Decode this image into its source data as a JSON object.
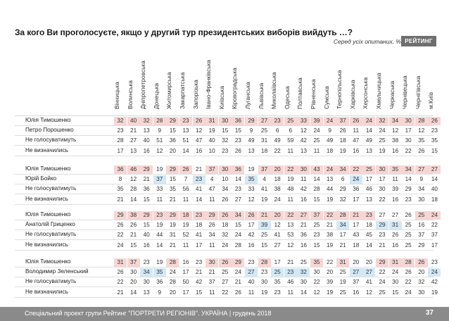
{
  "header": {
    "title": "За кого Ви проголосуєте, якщо у другий тур президентських виборів вийдуть …?",
    "subtitle": "Серед усіх опитаних, %",
    "logo": "РЕЙТИНГ"
  },
  "regions": [
    "Вінницька",
    "Волинська",
    "Дніпропетровська",
    "Донецька",
    "Житомирська",
    "Закарпатська",
    "Запорізька",
    "Івано-Франківська",
    "Київська",
    "Кіровоградська",
    "Луганська",
    "Львівська",
    "Миколаївська",
    "Одеська",
    "Полтавська",
    "Рівненська",
    "Сумська",
    "Тернопільська",
    "Харківська",
    "Херсонська",
    "Хмельницька",
    "Черкаська",
    "Чернівецька",
    "Чернігівська",
    "м.Київ"
  ],
  "colors": {
    "leader": "#f6d6d4",
    "challenger": "#d3e8f6"
  },
  "blocks": [
    {
      "rows": [
        {
          "label": "Юлія Тимошенко",
          "values": [
            "32",
            "40",
            "32",
            "28",
            "29",
            "23",
            "26",
            "31",
            "30",
            "36",
            "29",
            "27",
            "23",
            "25",
            "33",
            "39",
            "24",
            "37",
            "26",
            "24",
            "32",
            "34",
            "30",
            "28",
            "26"
          ],
          "highlight": [
            "r",
            "r",
            "r",
            "r",
            "r",
            "r",
            "r",
            "r",
            "r",
            "r",
            "r",
            "r",
            "r",
            "r",
            "r",
            "r",
            "r",
            "r",
            "r",
            "r",
            "r",
            "r",
            "r",
            "r",
            "r"
          ]
        },
        {
          "label": "Петро Порошенко",
          "values": [
            "23",
            "21",
            "13",
            "9",
            "15",
            "13",
            "12",
            "19",
            "15",
            "15",
            "9",
            "25",
            "6",
            "6",
            "12",
            "24",
            "9",
            "26",
            "11",
            "14",
            "24",
            "12",
            "17",
            "12",
            "23"
          ],
          "highlight": []
        },
        {
          "label": "Не голосуватимуть",
          "values": [
            "28",
            "27",
            "40",
            "51",
            "36",
            "51",
            "47",
            "40",
            "32",
            "23",
            "49",
            "31",
            "49",
            "59",
            "42",
            "25",
            "49",
            "18",
            "47",
            "49",
            "25",
            "38",
            "30",
            "35",
            "35"
          ],
          "highlight": []
        },
        {
          "label": "Не визначились",
          "values": [
            "17",
            "13",
            "16",
            "12",
            "20",
            "14",
            "16",
            "10",
            "23",
            "26",
            "13",
            "18",
            "22",
            "11",
            "13",
            "11",
            "18",
            "19",
            "16",
            "13",
            "19",
            "16",
            "22",
            "26",
            "15"
          ],
          "highlight": []
        }
      ]
    },
    {
      "rows": [
        {
          "label": "Юлія Тимошенко",
          "values": [
            "36",
            "46",
            "29",
            "19",
            "29",
            "26",
            "21",
            "37",
            "30",
            "36",
            "19",
            "37",
            "20",
            "22",
            "30",
            "43",
            "24",
            "34",
            "22",
            "25",
            "30",
            "35",
            "34",
            "27",
            "27"
          ],
          "highlight": [
            "r",
            "r",
            "r",
            "",
            "r",
            "r",
            "",
            "r",
            "r",
            "r",
            "",
            "r",
            "r",
            "r",
            "r",
            "r",
            "r",
            "r",
            "r",
            "r",
            "r",
            "r",
            "r",
            "r",
            "r"
          ]
        },
        {
          "label": "Юрій Бойко",
          "values": [
            "8",
            "12",
            "21",
            "37",
            "15",
            "7",
            "23",
            "4",
            "10",
            "14",
            "35",
            "4",
            "18",
            "19",
            "11",
            "14",
            "13",
            "6",
            "24",
            "17",
            "17",
            "11",
            "14",
            "9",
            "14"
          ],
          "highlight": [
            "",
            "",
            "",
            "b",
            "",
            "",
            "b",
            "",
            "",
            "",
            "b",
            "",
            "",
            "",
            "",
            "",
            "",
            "",
            "b",
            "",
            "",
            "",
            "",
            "",
            ""
          ]
        },
        {
          "label": "Не голосуватимуть",
          "values": [
            "35",
            "28",
            "36",
            "33",
            "35",
            "56",
            "41",
            "47",
            "34",
            "23",
            "33",
            "41",
            "38",
            "48",
            "42",
            "28",
            "44",
            "29",
            "36",
            "46",
            "30",
            "39",
            "29",
            "34",
            "40"
          ],
          "highlight": []
        },
        {
          "label": "Не визначились",
          "values": [
            "21",
            "14",
            "15",
            "11",
            "21",
            "11",
            "14",
            "11",
            "26",
            "27",
            "12",
            "19",
            "24",
            "11",
            "16",
            "15",
            "19",
            "32",
            "17",
            "13",
            "22",
            "16",
            "23",
            "30",
            "18"
          ],
          "highlight": []
        }
      ]
    },
    {
      "rows": [
        {
          "label": "Юлія Тимошенко",
          "values": [
            "29",
            "38",
            "29",
            "23",
            "29",
            "18",
            "23",
            "29",
            "26",
            "34",
            "26",
            "21",
            "20",
            "22",
            "27",
            "37",
            "22",
            "28",
            "21",
            "23",
            "27",
            "27",
            "26",
            "25",
            "24"
          ],
          "highlight": [
            "r",
            "r",
            "r",
            "r",
            "r",
            "r",
            "r",
            "r",
            "r",
            "r",
            "r",
            "r",
            "r",
            "r",
            "r",
            "r",
            "r",
            "r",
            "r",
            "r",
            "",
            "",
            "",
            "r",
            "r"
          ]
        },
        {
          "label": "Анатолій Гриценко",
          "values": [
            "26",
            "26",
            "15",
            "19",
            "19",
            "19",
            "18",
            "26",
            "18",
            "15",
            "17",
            "39",
            "12",
            "13",
            "21",
            "25",
            "21",
            "34",
            "17",
            "18",
            "29",
            "31",
            "25",
            "16",
            "22"
          ],
          "highlight": [
            "",
            "",
            "",
            "",
            "",
            "",
            "",
            "",
            "",
            "",
            "",
            "b",
            "",
            "",
            "",
            "",
            "",
            "b",
            "",
            "",
            "b",
            "b",
            "",
            "",
            ""
          ]
        },
        {
          "label": "Не голосуватимуть",
          "values": [
            "22",
            "21",
            "40",
            "44",
            "31",
            "52",
            "41",
            "34",
            "32",
            "24",
            "42",
            "25",
            "41",
            "53",
            "36",
            "23",
            "38",
            "17",
            "43",
            "45",
            "23",
            "26",
            "25",
            "37",
            "37"
          ],
          "highlight": []
        },
        {
          "label": "Не визначились",
          "values": [
            "24",
            "15",
            "16",
            "14",
            "21",
            "11",
            "17",
            "11",
            "24",
            "28",
            "16",
            "15",
            "27",
            "12",
            "16",
            "15",
            "19",
            "21",
            "18",
            "14",
            "21",
            "16",
            "25",
            "29",
            "17"
          ],
          "highlight": []
        }
      ]
    },
    {
      "rows": [
        {
          "label": "Юлія Тимошенко",
          "values": [
            "31",
            "37",
            "23",
            "19",
            "28",
            "16",
            "23",
            "30",
            "26",
            "29",
            "23",
            "28",
            "17",
            "21",
            "25",
            "35",
            "22",
            "31",
            "20",
            "20",
            "29",
            "31",
            "28",
            "26",
            "23"
          ],
          "highlight": [
            "r",
            "r",
            "",
            "",
            "r",
            "",
            "",
            "r",
            "r",
            "r",
            "",
            "r",
            "",
            "",
            "",
            "r",
            "",
            "r",
            "",
            "",
            "r",
            "r",
            "r",
            "r",
            ""
          ]
        },
        {
          "label": "Володимир Зеленський",
          "values": [
            "26",
            "30",
            "34",
            "35",
            "24",
            "17",
            "21",
            "21",
            "25",
            "24",
            "27",
            "23",
            "25",
            "23",
            "32",
            "30",
            "20",
            "25",
            "27",
            "27",
            "22",
            "24",
            "26",
            "20",
            "24"
          ],
          "highlight": [
            "",
            "",
            "b",
            "b",
            "",
            "",
            "",
            "",
            "",
            "",
            "b",
            "",
            "b",
            "b",
            "b",
            "",
            "",
            "",
            "b",
            "b",
            "",
            "",
            "",
            "",
            "b"
          ]
        },
        {
          "label": "Не голосуватимуть",
          "values": [
            "22",
            "20",
            "30",
            "36",
            "28",
            "50",
            "42",
            "37",
            "27",
            "21",
            "40",
            "30",
            "35",
            "46",
            "30",
            "22",
            "39",
            "19",
            "37",
            "41",
            "24",
            "30",
            "22",
            "32",
            "42"
          ],
          "highlight": []
        },
        {
          "label": "Не визначились",
          "values": [
            "21",
            "14",
            "13",
            "9",
            "20",
            "17",
            "15",
            "11",
            "22",
            "26",
            "11",
            "19",
            "23",
            "11",
            "14",
            "12",
            "19",
            "25",
            "16",
            "12",
            "25",
            "15",
            "24",
            "30",
            "19"
          ],
          "highlight": []
        }
      ]
    }
  ],
  "footer": {
    "text": "Спеціальний проект групи Рейтинг \"ПОРТРЕТИ РЕГІОНІВ\". УКРАЇНА | грудень 2018",
    "page": "37"
  }
}
